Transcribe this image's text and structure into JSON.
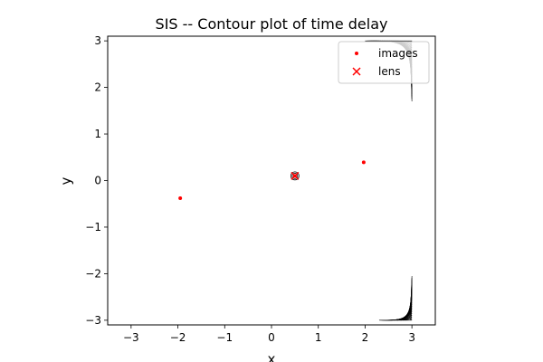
{
  "chart_data": {
    "type": "scatter",
    "title": "SIS -- Contour plot of time delay",
    "xlabel": "x",
    "ylabel": "y",
    "xlim": [
      -3.5,
      3.5
    ],
    "ylim": [
      -3.1,
      3.1
    ],
    "xticks": [
      -3,
      -2,
      -1,
      0,
      1,
      2,
      3
    ],
    "yticks": [
      -3,
      -2,
      -1,
      0,
      1,
      2,
      3
    ],
    "xtick_labels": [
      "−3",
      "−2",
      "−1",
      "0",
      "1",
      "2",
      "3"
    ],
    "ytick_labels": [
      "−3",
      "−2",
      "−1",
      "0",
      "1",
      "2",
      "3"
    ],
    "grid": false,
    "legend_position": "top-right",
    "colors": {
      "images": "#ff0000",
      "lens": "#ff0000",
      "contours": "#000000"
    },
    "series": [
      {
        "name": "images",
        "marker": "dot",
        "points": [
          [
            -1.95,
            -0.38
          ],
          [
            1.97,
            0.39
          ],
          [
            0.5,
            0.1
          ]
        ]
      },
      {
        "name": "lens",
        "marker": "x",
        "points": [
          [
            0.5,
            0.1
          ]
        ]
      }
    ],
    "contour_regions": [
      {
        "corner": "top-right",
        "x_range": [
          2.0,
          3.0
        ],
        "y_range": [
          1.7,
          3.0
        ]
      },
      {
        "corner": "bottom-right",
        "x_range": [
          2.3,
          3.0
        ],
        "y_range": [
          -3.0,
          -2.05
        ]
      }
    ]
  }
}
